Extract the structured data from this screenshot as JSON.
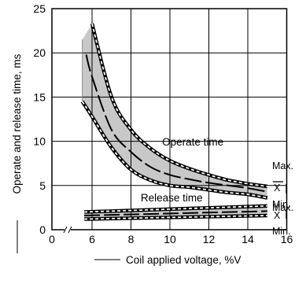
{
  "chart_data": {
    "type": "line",
    "title": "",
    "xlabel": "Coil applied voltage, %V",
    "ylabel": "Operate and release time, ms",
    "xlim": [
      0,
      16
    ],
    "ylim": [
      0,
      25
    ],
    "x_axis_break": true,
    "grid": true,
    "x_ticks": [
      "0",
      "6",
      "8",
      "10",
      "12",
      "14",
      "16"
    ],
    "y_ticks": [
      "0",
      "5",
      "10",
      "15",
      "20",
      "25"
    ],
    "series": [
      {
        "name": "Operate time",
        "x_max": [
          6,
          7,
          8,
          9,
          10,
          11,
          12,
          13,
          14,
          15
        ],
        "max": [
          23.3,
          15.0,
          11.3,
          9.2,
          7.8,
          6.9,
          6.2,
          5.6,
          5.2,
          4.9
        ],
        "x_mean": [
          5.7,
          6,
          7,
          8,
          9,
          10,
          11,
          12,
          13,
          14,
          15
        ],
        "mean": [
          19.8,
          17.3,
          11.3,
          8.8,
          7.1,
          6.2,
          5.7,
          5.3,
          5.0,
          4.7,
          4.3
        ],
        "x_min": [
          5.5,
          6,
          7,
          8,
          9,
          10,
          11,
          12,
          13,
          14,
          15
        ],
        "min": [
          14.5,
          12.8,
          9.3,
          6.8,
          5.6,
          5.0,
          4.8,
          4.5,
          4.2,
          4.0,
          3.6
        ],
        "x_spread_left": [
          5.5,
          5.5
        ],
        "spread_left": [
          14.5,
          21.5
        ]
      },
      {
        "name": "Release time",
        "x_max": [
          5.6,
          15
        ],
        "max": [
          2.0,
          2.7
        ],
        "x_mean": [
          5.6,
          15
        ],
        "mean": [
          1.6,
          2.1
        ],
        "x_min": [
          5.6,
          15
        ],
        "min": [
          1.2,
          1.6
        ]
      }
    ],
    "annotations": {
      "operate_label": "Operate time",
      "release_label": "Release time",
      "operate_max": "Max.",
      "operate_mean": "X",
      "operate_min": "Min.",
      "release_max": "Max.",
      "release_mean": "X",
      "release_min": "Min."
    },
    "colors": {
      "band": "#c8c8c8",
      "line": "#000000",
      "grid": "#000000"
    }
  }
}
